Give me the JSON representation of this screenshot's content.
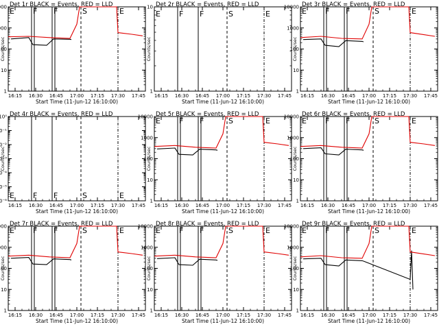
{
  "figure": {
    "background": "#ffffff",
    "events_color": "#000000",
    "lld_color": "#e00000"
  },
  "chart_data": [
    {
      "type": "line",
      "detector": "Det 1r",
      "title": "Det 1r BLACK = Events, RED = LLD",
      "ylabel": "Counts/sec",
      "xlabel": "Start Time (11-Jun-12 16:10:00)",
      "yscale": "log",
      "ylim": [
        1,
        10000
      ],
      "y_ticklabels": [
        "1",
        "10",
        "100",
        "1000",
        "10000"
      ],
      "x_ticklabels": [
        "16:15",
        "16:30",
        "16:45",
        "17:00",
        "17:15",
        "17:30",
        "17:45"
      ],
      "mode_markers": [
        {
          "time": "16:10",
          "label": "E"
        },
        {
          "time": "16:27",
          "label": "F"
        },
        {
          "time": "16:42",
          "label": "F"
        },
        {
          "time": "17:03",
          "label": "S"
        },
        {
          "time": "17:30",
          "label": "E"
        }
      ],
      "series": [
        {
          "name": "Events",
          "color": "#000000",
          "x": [
            "16:12",
            "16:25",
            "16:28",
            "16:38",
            "16:43",
            "16:55",
            "16:56"
          ],
          "y": [
            300,
            350,
            160,
            150,
            300,
            290,
            280
          ]
        },
        {
          "name": "LLD",
          "color": "#e00000",
          "x": [
            "16:10",
            "16:25",
            "16:40",
            "16:55",
            "17:00",
            "17:02",
            "17:29",
            "17:30",
            "17:40",
            "17:48"
          ],
          "y": [
            380,
            400,
            350,
            320,
            1500,
            10000,
            10000,
            600,
            500,
            420
          ]
        }
      ]
    },
    {
      "type": "line",
      "detector": "Det 2r",
      "title": "Det 2r BLACK = Events, RED = LLD",
      "ylabel": "Counts/sec",
      "xlabel": "Start Time (11-Jun-12 16:10:00)",
      "yscale": "log",
      "ylim": [
        1,
        10
      ],
      "y_ticklabels": [
        "1",
        "10"
      ],
      "x_ticklabels": [
        "16:15",
        "16:30",
        "16:45",
        "17:00",
        "17:15",
        "17:30",
        "17:45"
      ],
      "mode_markers": [
        {
          "time": "16:10",
          "label": "E"
        },
        {
          "time": "16:27",
          "label": "F"
        },
        {
          "time": "16:42",
          "label": "F"
        },
        {
          "time": "17:03",
          "label": "S"
        },
        {
          "time": "17:30",
          "label": "E"
        }
      ],
      "series": []
    },
    {
      "type": "line",
      "detector": "Det 3r",
      "title": "Det 3r BLACK = Events, RED = LLD",
      "ylabel": "Counts/sec",
      "xlabel": "Start Time (11-Jun-12 16:10:00)",
      "yscale": "log",
      "ylim": [
        1,
        10000
      ],
      "y_ticklabels": [
        "1",
        "10",
        "100",
        "1000",
        "10000"
      ],
      "x_ticklabels": [
        "16:15",
        "16:30",
        "16:45",
        "17:00",
        "17:15",
        "17:30",
        "17:45"
      ],
      "mode_markers": [
        {
          "time": "16:10",
          "label": "E"
        },
        {
          "time": "16:27",
          "label": "F"
        },
        {
          "time": "16:42",
          "label": "F"
        },
        {
          "time": "17:03",
          "label": "S"
        },
        {
          "time": "17:30",
          "label": "E"
        }
      ],
      "series": [
        {
          "name": "Events",
          "color": "#000000",
          "x": [
            "16:12",
            "16:25",
            "16:28",
            "16:38",
            "16:43",
            "16:55",
            "16:56"
          ],
          "y": [
            280,
            300,
            150,
            130,
            250,
            230,
            220
          ]
        },
        {
          "name": "LLD",
          "color": "#e00000",
          "x": [
            "16:10",
            "16:25",
            "16:40",
            "16:55",
            "17:00",
            "17:02",
            "17:29",
            "17:30",
            "17:40",
            "17:48"
          ],
          "y": [
            350,
            400,
            320,
            300,
            1500,
            10000,
            10000,
            600,
            480,
            400
          ]
        }
      ]
    },
    {
      "type": "line",
      "detector": "Det 4r",
      "title": "Det 4r BLACK = Events, RED = LLD",
      "ylabel": "Counts/sec",
      "xlabel": "Start Time (11-Jun-12 16:10:00)",
      "yscale": "log",
      "ylim": [
        1e-06,
        1
      ],
      "y_ticklabels": [
        "10⁻⁶",
        "10⁻⁵",
        "10⁻⁴",
        "10⁻³",
        "10⁻²",
        "10⁻¹",
        "10⁰"
      ],
      "x_ticklabels": [
        "16:15",
        "16:30",
        "16:45",
        "17:00",
        "17:15",
        "17:30",
        "17:45"
      ],
      "mode_markers": [
        {
          "time": "16:10",
          "label": "E"
        },
        {
          "time": "16:27",
          "label": "F"
        },
        {
          "time": "16:42",
          "label": "F"
        },
        {
          "time": "17:03",
          "label": "S"
        },
        {
          "time": "17:30",
          "label": "E"
        }
      ],
      "series": []
    },
    {
      "type": "line",
      "detector": "Det 5r",
      "title": "Det 5r BLACK = Events, RED = LLD",
      "ylabel": "Counts/sec",
      "xlabel": "Start Time (11-Jun-12 16:10:00)",
      "yscale": "log",
      "ylim": [
        1,
        10000
      ],
      "y_ticklabels": [
        "1",
        "10",
        "100",
        "1000",
        "10000"
      ],
      "x_ticklabels": [
        "16:15",
        "16:30",
        "16:45",
        "17:00",
        "17:15",
        "17:30",
        "17:45"
      ],
      "mode_markers": [
        {
          "time": "16:10",
          "label": "E"
        },
        {
          "time": "16:27",
          "label": "F"
        },
        {
          "time": "16:42",
          "label": "F"
        },
        {
          "time": "17:03",
          "label": "S"
        },
        {
          "time": "17:30",
          "label": "E"
        }
      ],
      "series": [
        {
          "name": "Events",
          "color": "#000000",
          "x": [
            "16:12",
            "16:25",
            "16:28",
            "16:38",
            "16:43",
            "16:55",
            "16:56"
          ],
          "y": [
            290,
            320,
            160,
            150,
            280,
            260,
            250
          ]
        },
        {
          "name": "LLD",
          "color": "#e00000",
          "x": [
            "16:10",
            "16:25",
            "16:40",
            "16:55",
            "17:00",
            "17:02",
            "17:29",
            "17:30",
            "17:40",
            "17:48"
          ],
          "y": [
            380,
            420,
            350,
            320,
            1500,
            10000,
            10000,
            600,
            500,
            420
          ]
        }
      ]
    },
    {
      "type": "line",
      "detector": "Det 6r",
      "title": "Det 6r BLACK = Events, RED = LLD",
      "ylabel": "Counts/sec",
      "xlabel": "Start Time (11-Jun-12 16:10:00)",
      "yscale": "log",
      "ylim": [
        1,
        10000
      ],
      "y_ticklabels": [
        "1",
        "10",
        "100",
        "1000",
        "10000"
      ],
      "x_ticklabels": [
        "16:15",
        "16:30",
        "16:45",
        "17:00",
        "17:15",
        "17:30",
        "17:45"
      ],
      "mode_markers": [
        {
          "time": "16:10",
          "label": "E"
        },
        {
          "time": "16:27",
          "label": "F"
        },
        {
          "time": "16:42",
          "label": "F"
        },
        {
          "time": "17:03",
          "label": "S"
        },
        {
          "time": "17:30",
          "label": "E"
        }
      ],
      "series": [
        {
          "name": "Events",
          "color": "#000000",
          "x": [
            "16:12",
            "16:25",
            "16:28",
            "16:38",
            "16:43",
            "16:55",
            "16:56"
          ],
          "y": [
            300,
            330,
            170,
            150,
            280,
            260,
            250
          ]
        },
        {
          "name": "LLD",
          "color": "#e00000",
          "x": [
            "16:10",
            "16:25",
            "16:40",
            "16:55",
            "17:00",
            "17:02",
            "17:29",
            "17:30",
            "17:40",
            "17:48"
          ],
          "y": [
            380,
            420,
            350,
            320,
            1500,
            10000,
            10000,
            600,
            500,
            420
          ]
        }
      ]
    },
    {
      "type": "line",
      "detector": "Det 7r",
      "title": "Det 7r BLACK = Events, RED = LLD",
      "ylabel": "Counts/sec",
      "xlabel": "Start Time (11-Jun-12 16:10:00)",
      "yscale": "log",
      "ylim": [
        1,
        10000
      ],
      "y_ticklabels": [
        "1",
        "10",
        "100",
        "1000",
        "10000"
      ],
      "x_ticklabels": [
        "16:15",
        "16:30",
        "16:45",
        "17:00",
        "17:15",
        "17:30",
        "17:45"
      ],
      "mode_markers": [
        {
          "time": "16:10",
          "label": "E"
        },
        {
          "time": "16:27",
          "label": "F"
        },
        {
          "time": "16:42",
          "label": "F"
        },
        {
          "time": "17:03",
          "label": "S"
        },
        {
          "time": "17:30",
          "label": "E"
        }
      ],
      "series": [
        {
          "name": "Events",
          "color": "#000000",
          "x": [
            "16:12",
            "16:25",
            "16:28",
            "16:38",
            "16:43",
            "16:55",
            "16:56"
          ],
          "y": [
            300,
            330,
            160,
            150,
            280,
            260,
            250
          ]
        },
        {
          "name": "LLD",
          "color": "#e00000",
          "x": [
            "16:10",
            "16:25",
            "16:40",
            "16:55",
            "17:00",
            "17:02",
            "17:29",
            "17:30",
            "17:40",
            "17:48"
          ],
          "y": [
            380,
            420,
            350,
            320,
            1500,
            10000,
            10000,
            600,
            500,
            420
          ]
        }
      ]
    },
    {
      "type": "line",
      "detector": "Det 8r",
      "title": "Det 8r BLACK = Events, RED = LLD",
      "ylabel": "Counts/sec",
      "xlabel": "Start Time (11-Jun-12 16:10:00)",
      "yscale": "log",
      "ylim": [
        1,
        10000
      ],
      "y_ticklabels": [
        "1",
        "10",
        "100",
        "1000",
        "10000"
      ],
      "x_ticklabels": [
        "16:15",
        "16:30",
        "16:45",
        "17:00",
        "17:15",
        "17:30",
        "17:45"
      ],
      "mode_markers": [
        {
          "time": "16:10",
          "label": "E"
        },
        {
          "time": "16:27",
          "label": "F"
        },
        {
          "time": "16:42",
          "label": "F"
        },
        {
          "time": "17:03",
          "label": "S"
        },
        {
          "time": "17:30",
          "label": "E"
        }
      ],
      "series": [
        {
          "name": "Events",
          "color": "#000000",
          "x": [
            "16:12",
            "16:25",
            "16:28",
            "16:38",
            "16:43",
            "16:55",
            "16:56"
          ],
          "y": [
            290,
            320,
            150,
            140,
            270,
            250,
            240
          ]
        },
        {
          "name": "LLD",
          "color": "#e00000",
          "x": [
            "16:10",
            "16:25",
            "16:40",
            "16:55",
            "17:00",
            "17:02",
            "17:29",
            "17:30",
            "17:40",
            "17:48"
          ],
          "y": [
            380,
            420,
            350,
            320,
            1500,
            10000,
            10000,
            600,
            500,
            420
          ]
        }
      ]
    },
    {
      "type": "line",
      "detector": "Det 9r",
      "title": "Det 9r BLACK = Events, RED = LLD",
      "ylabel": "Counts/sec",
      "xlabel": "Start Time (11-Jun-12 16:10:00)",
      "yscale": "log",
      "ylim": [
        1,
        10000
      ],
      "y_ticklabels": [
        "1",
        "10",
        "100",
        "1000",
        "10000"
      ],
      "x_ticklabels": [
        "16:15",
        "16:30",
        "16:45",
        "17:00",
        "17:15",
        "17:30",
        "17:45"
      ],
      "mode_markers": [
        {
          "time": "16:10",
          "label": "E"
        },
        {
          "time": "16:27",
          "label": "F"
        },
        {
          "time": "16:42",
          "label": "F"
        },
        {
          "time": "17:03",
          "label": "S"
        },
        {
          "time": "17:30",
          "label": "E"
        }
      ],
      "series": [
        {
          "name": "Events",
          "color": "#000000",
          "x": [
            "16:12",
            "16:25",
            "16:28",
            "16:38",
            "16:43",
            "16:55",
            "16:56",
            "17:30",
            "17:31",
            "17:32"
          ],
          "y": [
            280,
            300,
            150,
            130,
            250,
            230,
            220,
            30,
            700,
            10
          ]
        },
        {
          "name": "LLD",
          "color": "#e00000",
          "x": [
            "16:10",
            "16:25",
            "16:40",
            "16:55",
            "17:00",
            "17:02",
            "17:29",
            "17:30",
            "17:40",
            "17:48"
          ],
          "y": [
            350,
            400,
            320,
            300,
            1500,
            10000,
            10000,
            600,
            480,
            400
          ]
        }
      ]
    }
  ]
}
